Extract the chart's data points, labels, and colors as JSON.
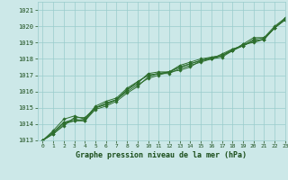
{
  "title": "Graphe pression niveau de la mer (hPa)",
  "bg_color": "#cce8e8",
  "plot_bg_color": "#cce8e8",
  "grid_color": "#99cccc",
  "line_color": "#2d6e2d",
  "marker_color": "#2d6e2d",
  "text_color": "#1a4d1a",
  "xlim": [
    -0.5,
    23
  ],
  "ylim": [
    1013,
    1021.5
  ],
  "yticks": [
    1013,
    1014,
    1015,
    1016,
    1017,
    1018,
    1019,
    1020,
    1021
  ],
  "xticks": [
    0,
    1,
    2,
    3,
    4,
    5,
    6,
    7,
    8,
    9,
    10,
    11,
    12,
    13,
    14,
    15,
    16,
    17,
    18,
    19,
    20,
    21,
    22,
    23
  ],
  "series": [
    [
      1013.0,
      1013.5,
      1014.1,
      1014.3,
      1014.2,
      1015.0,
      1015.3,
      1015.5,
      1016.1,
      1016.5,
      1017.1,
      1017.2,
      1017.2,
      1017.6,
      1017.8,
      1018.0,
      1018.1,
      1018.2,
      1018.5,
      1018.9,
      1019.3,
      1019.3,
      1020.0,
      1020.5
    ],
    [
      1013.0,
      1013.6,
      1014.3,
      1014.5,
      1014.3,
      1015.1,
      1015.4,
      1015.6,
      1016.2,
      1016.6,
      1017.0,
      1017.1,
      1017.1,
      1017.4,
      1017.6,
      1017.8,
      1018.0,
      1018.3,
      1018.6,
      1018.8,
      1019.2,
      1019.3,
      1019.9,
      1020.4
    ],
    [
      1013.0,
      1013.4,
      1013.9,
      1014.4,
      1014.4,
      1015.0,
      1015.2,
      1015.5,
      1016.0,
      1016.4,
      1016.8,
      1017.0,
      1017.2,
      1017.3,
      1017.5,
      1017.9,
      1018.0,
      1018.2,
      1018.5,
      1018.9,
      1019.0,
      1019.2,
      1019.9,
      1020.4
    ],
    [
      1013.0,
      1013.5,
      1014.1,
      1014.2,
      1014.2,
      1014.9,
      1015.1,
      1015.4,
      1015.9,
      1016.3,
      1016.9,
      1017.1,
      1017.2,
      1017.5,
      1017.7,
      1017.9,
      1018.1,
      1018.2,
      1018.6,
      1018.8,
      1019.1,
      1019.2,
      1019.9,
      1020.4
    ],
    [
      1013.0,
      1013.4,
      1014.0,
      1014.2,
      1014.3,
      1015.0,
      1015.2,
      1015.5,
      1016.1,
      1016.6,
      1017.0,
      1017.1,
      1017.2,
      1017.5,
      1017.7,
      1017.9,
      1018.0,
      1018.1,
      1018.5,
      1018.8,
      1019.1,
      1019.2,
      1019.9,
      1020.5
    ]
  ]
}
